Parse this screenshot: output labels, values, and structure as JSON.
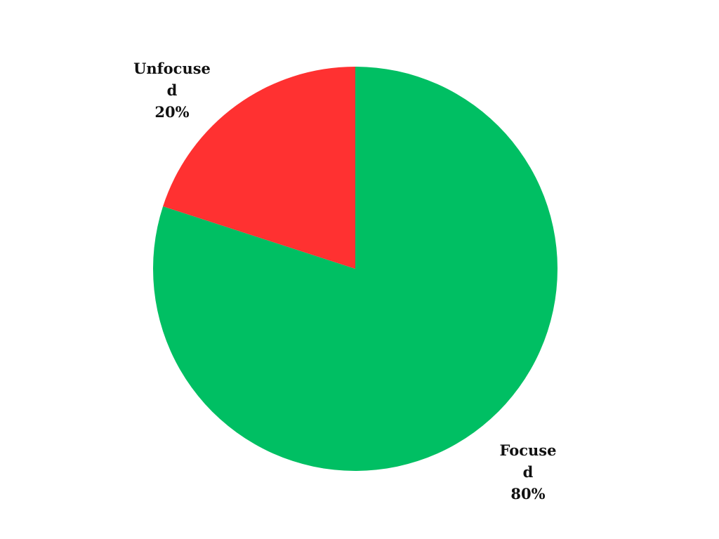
{
  "chart_data": {
    "type": "pie",
    "title": "",
    "start_angle_deg": 0,
    "direction": "clockwise",
    "legend": "none",
    "slices": [
      {
        "label_lines": [
          "Focuse",
          "d"
        ],
        "label": "Focused",
        "value": 80,
        "value_label": "80%",
        "color": "#00BF63"
      },
      {
        "label_lines": [
          "Unfocuse",
          "d"
        ],
        "label": "Unfocused",
        "value": 20,
        "value_label": "20%",
        "color": "#FF3131"
      }
    ]
  }
}
